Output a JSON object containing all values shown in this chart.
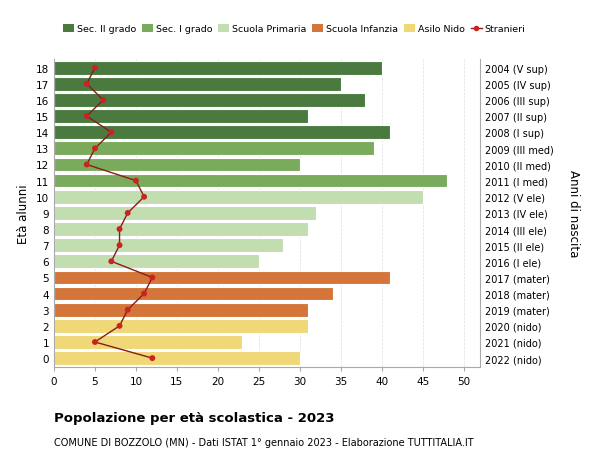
{
  "ages": [
    18,
    17,
    16,
    15,
    14,
    13,
    12,
    11,
    10,
    9,
    8,
    7,
    6,
    5,
    4,
    3,
    2,
    1,
    0
  ],
  "right_labels": [
    "2004 (V sup)",
    "2005 (IV sup)",
    "2006 (III sup)",
    "2007 (II sup)",
    "2008 (I sup)",
    "2009 (III med)",
    "2010 (II med)",
    "2011 (I med)",
    "2012 (V ele)",
    "2013 (IV ele)",
    "2014 (III ele)",
    "2015 (II ele)",
    "2016 (I ele)",
    "2017 (mater)",
    "2018 (mater)",
    "2019 (mater)",
    "2020 (nido)",
    "2021 (nido)",
    "2022 (nido)"
  ],
  "bar_values": [
    40,
    35,
    38,
    31,
    41,
    39,
    30,
    48,
    45,
    32,
    31,
    28,
    25,
    41,
    34,
    31,
    31,
    23,
    30
  ],
  "bar_colors": [
    "#4a7a40",
    "#4a7a40",
    "#4a7a40",
    "#4a7a40",
    "#4a7a40",
    "#7aab5c",
    "#7aab5c",
    "#7aab5c",
    "#c2ddb0",
    "#c2ddb0",
    "#c2ddb0",
    "#c2ddb0",
    "#c2ddb0",
    "#d4763a",
    "#d4763a",
    "#d4763a",
    "#f0d878",
    "#f0d878",
    "#f0d878"
  ],
  "stranieri_values": [
    5,
    4,
    6,
    4,
    7,
    5,
    4,
    10,
    11,
    9,
    8,
    8,
    7,
    12,
    11,
    9,
    8,
    5,
    12
  ],
  "legend_labels": [
    "Sec. II grado",
    "Sec. I grado",
    "Scuola Primaria",
    "Scuola Infanzia",
    "Asilo Nido",
    "Stranieri"
  ],
  "legend_colors": [
    "#4a7a40",
    "#7aab5c",
    "#c2ddb0",
    "#d4763a",
    "#f0d878",
    "#a02020"
  ],
  "title_bold": "Popolazione per età scolastica - 2023",
  "subtitle": "COMUNE DI BOZZOLO (MN) - Dati ISTAT 1° gennaio 2023 - Elaborazione TUTTITALIA.IT",
  "ylabel": "Età alunni",
  "ylabel2": "Anni di nascita",
  "xlim": [
    0,
    52
  ],
  "xticks": [
    0,
    5,
    10,
    15,
    20,
    25,
    30,
    35,
    40,
    45,
    50
  ],
  "bg_color": "#ffffff",
  "bar_height": 0.85,
  "grid_color": "#dddddd"
}
